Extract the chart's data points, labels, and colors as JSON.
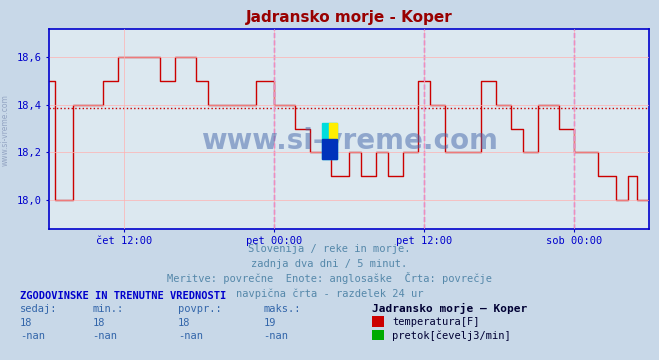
{
  "title": "Jadransko morje - Koper",
  "title_color": "#990000",
  "bg_color": "#c8d8e8",
  "plot_bg_color": "#dce8f0",
  "grid_color": "#ffb0b0",
  "axis_color": "#0000cc",
  "ylabel_values": [
    "18,0",
    "18,2",
    "18,4",
    "18,6"
  ],
  "yticks": [
    18.0,
    18.2,
    18.4,
    18.6
  ],
  "ylim": [
    17.88,
    18.72
  ],
  "avg_line_y": 18.385,
  "avg_line_color": "#cc0000",
  "vline_positions": [
    0.375,
    0.625,
    0.875
  ],
  "vline_color": "#cc44cc",
  "xtick_labels": [
    "čet 12:00",
    "pet 00:00",
    "pet 12:00",
    "sob 00:00"
  ],
  "xtick_positions": [
    0.125,
    0.375,
    0.625,
    0.875
  ],
  "watermark": "www.si-vreme.com",
  "watermark_color": "#4466aa",
  "sidebar_text": "www.si-vreme.com",
  "sub_text1": "Slovenija / reke in morje.",
  "sub_text2": "zadnja dva dni / 5 minut.",
  "sub_text3": "Meritve: povrečne  Enote: anglosaške  Črta: povrečje",
  "sub_text4": "navpična črta - razdelek 24 ur",
  "sub_color": "#5588aa",
  "table_title": "ZGODOVINSKE IN TRENUTNE VREDNOSTI",
  "table_headers": [
    "sedaj:",
    "min.:",
    "povpr.:",
    "maks.:"
  ],
  "table_row1": [
    "18",
    "18",
    "18",
    "19"
  ],
  "table_row2": [
    "-nan",
    "-nan",
    "-nan",
    "-nan"
  ],
  "legend_label1": "temperatura[F]",
  "legend_color1": "#cc0000",
  "legend_label2": "pretok[čevelj3/min]",
  "legend_color2": "#00aa00",
  "station_label": "Jadransko morje – Koper",
  "temp_data_x": [
    0.0,
    0.01,
    0.01,
    0.04,
    0.04,
    0.09,
    0.09,
    0.115,
    0.115,
    0.135,
    0.135,
    0.185,
    0.185,
    0.21,
    0.21,
    0.245,
    0.245,
    0.265,
    0.265,
    0.29,
    0.29,
    0.33,
    0.33,
    0.345,
    0.345,
    0.375,
    0.375,
    0.41,
    0.41,
    0.435,
    0.435,
    0.47,
    0.47,
    0.5,
    0.5,
    0.52,
    0.52,
    0.545,
    0.545,
    0.565,
    0.565,
    0.59,
    0.59,
    0.615,
    0.615,
    0.635,
    0.635,
    0.66,
    0.66,
    0.68,
    0.68,
    0.72,
    0.72,
    0.745,
    0.745,
    0.77,
    0.77,
    0.79,
    0.79,
    0.815,
    0.815,
    0.85,
    0.85,
    0.875,
    0.875,
    0.915,
    0.915,
    0.945,
    0.945,
    0.965,
    0.965,
    0.98,
    0.98,
    1.0
  ],
  "temp_data_y": [
    18.5,
    18.5,
    18.0,
    18.0,
    18.4,
    18.4,
    18.5,
    18.5,
    18.6,
    18.6,
    18.6,
    18.6,
    18.5,
    18.5,
    18.6,
    18.6,
    18.5,
    18.5,
    18.4,
    18.4,
    18.4,
    18.4,
    18.4,
    18.4,
    18.5,
    18.5,
    18.4,
    18.4,
    18.3,
    18.3,
    18.2,
    18.2,
    18.1,
    18.1,
    18.2,
    18.2,
    18.1,
    18.1,
    18.2,
    18.2,
    18.1,
    18.1,
    18.2,
    18.2,
    18.5,
    18.5,
    18.4,
    18.4,
    18.2,
    18.2,
    18.2,
    18.2,
    18.5,
    18.5,
    18.4,
    18.4,
    18.3,
    18.3,
    18.2,
    18.2,
    18.4,
    18.4,
    18.3,
    18.3,
    18.2,
    18.2,
    18.1,
    18.1,
    18.0,
    18.0,
    18.1,
    18.1,
    18.0,
    18.0
  ],
  "line_color": "#cc0000",
  "line_width": 1.0
}
